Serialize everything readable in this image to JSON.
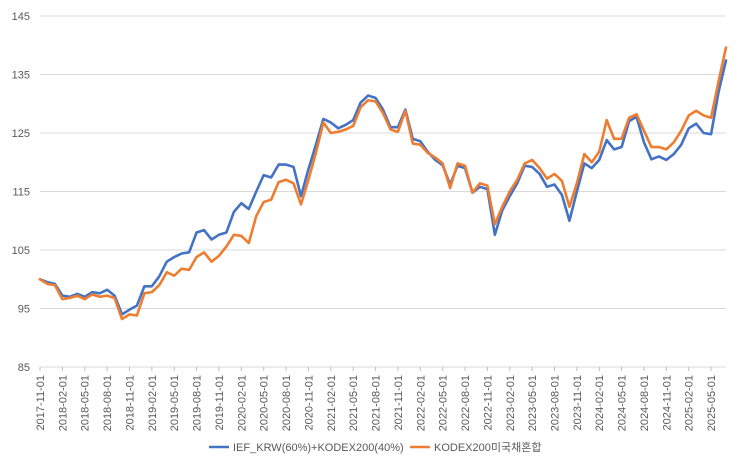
{
  "chart_data": {
    "type": "line",
    "title": "",
    "xlabel": "",
    "ylabel": "",
    "ylim": [
      85,
      145
    ],
    "yticks": [
      85,
      95,
      105,
      115,
      125,
      135,
      145
    ],
    "grid": true,
    "legend_position": "bottom",
    "x": [
      "2017-11-01",
      "2017-12-01",
      "2018-01-01",
      "2018-02-01",
      "2018-03-01",
      "2018-04-01",
      "2018-05-01",
      "2018-06-01",
      "2018-07-01",
      "2018-08-01",
      "2018-09-01",
      "2018-10-01",
      "2018-11-01",
      "2018-12-01",
      "2019-01-01",
      "2019-02-01",
      "2019-03-01",
      "2019-04-01",
      "2019-05-01",
      "2019-06-01",
      "2019-07-01",
      "2019-08-01",
      "2019-09-01",
      "2019-10-01",
      "2019-11-01",
      "2019-12-01",
      "2020-01-01",
      "2020-02-01",
      "2020-03-01",
      "2020-04-01",
      "2020-05-01",
      "2020-06-01",
      "2020-07-01",
      "2020-08-01",
      "2020-09-01",
      "2020-10-01",
      "2020-11-01",
      "2020-12-01",
      "2021-01-01",
      "2021-02-01",
      "2021-03-01",
      "2021-04-01",
      "2021-05-01",
      "2021-06-01",
      "2021-07-01",
      "2021-08-01",
      "2021-09-01",
      "2021-10-01",
      "2021-11-01",
      "2021-12-01",
      "2022-01-01",
      "2022-02-01",
      "2022-03-01",
      "2022-04-01",
      "2022-05-01",
      "2022-06-01",
      "2022-07-01",
      "2022-08-01",
      "2022-09-01",
      "2022-10-01",
      "2022-11-01",
      "2022-12-01",
      "2023-01-01",
      "2023-02-01",
      "2023-03-01",
      "2023-04-01",
      "2023-05-01",
      "2023-06-01",
      "2023-07-01",
      "2023-08-01",
      "2023-09-01",
      "2023-10-01",
      "2023-11-01",
      "2023-12-01",
      "2024-01-01",
      "2024-02-01",
      "2024-03-01",
      "2024-04-01",
      "2024-05-01",
      "2024-06-01",
      "2024-07-01",
      "2024-08-01",
      "2024-09-01",
      "2024-10-01",
      "2024-11-01",
      "2024-12-01",
      "2025-01-01",
      "2025-02-01",
      "2025-03-01",
      "2025-04-01",
      "2025-05-01",
      "2025-06-01",
      "2025-07-01"
    ],
    "tick_labels": [
      "2017-11-01",
      "2018-02-01",
      "2018-05-01",
      "2018-08-01",
      "2018-11-01",
      "2019-02-01",
      "2019-05-01",
      "2019-08-01",
      "2019-11-01",
      "2020-02-01",
      "2020-05-01",
      "2020-08-01",
      "2020-11-01",
      "2021-02-01",
      "2021-05-01",
      "2021-08-01",
      "2021-11-01",
      "2022-02-01",
      "2022-05-01",
      "2022-08-01",
      "2022-11-01",
      "2023-02-01",
      "2023-05-01",
      "2023-08-01",
      "2023-11-01",
      "2024-02-01",
      "2024-05-01",
      "2024-08-01",
      "2024-11-01",
      "2025-02-01",
      "2025-05-01"
    ],
    "tick_indices": [
      0,
      3,
      6,
      9,
      12,
      15,
      18,
      21,
      24,
      27,
      30,
      33,
      36,
      39,
      42,
      45,
      48,
      51,
      54,
      57,
      60,
      63,
      66,
      69,
      72,
      75,
      78,
      81,
      84,
      87,
      90
    ],
    "series": [
      {
        "name": "IEF_KRW(60%)+KODEX200(40%)",
        "color": "#4472c4",
        "values": [
          100.0,
          99.5,
          99.2,
          97.2,
          97.0,
          97.5,
          97.0,
          97.8,
          97.6,
          98.2,
          97.2,
          94.0,
          94.8,
          95.5,
          98.8,
          98.8,
          100.5,
          103.0,
          103.8,
          104.4,
          104.6,
          108.0,
          108.4,
          106.8,
          107.6,
          108.0,
          111.5,
          113.0,
          112.0,
          115.0,
          117.8,
          117.4,
          119.6,
          119.6,
          119.2,
          114.2,
          118.8,
          123.0,
          127.4,
          126.8,
          125.8,
          126.4,
          127.2,
          130.2,
          131.4,
          131.0,
          129.0,
          126.0,
          126.0,
          129.0,
          124.0,
          123.6,
          121.8,
          120.4,
          119.5,
          116.2,
          119.4,
          119.0,
          114.8,
          115.8,
          115.4,
          107.6,
          111.8,
          114.2,
          116.4,
          119.4,
          119.2,
          118.0,
          115.8,
          116.2,
          114.4,
          110.0,
          115.0,
          119.8,
          119.0,
          120.4,
          123.8,
          122.2,
          122.6,
          127.0,
          127.8,
          123.4,
          120.5,
          121.0,
          120.4,
          121.4,
          123.0,
          125.8,
          126.6,
          125.0,
          124.8,
          132.0,
          137.4
        ]
      },
      {
        "name": "KODEX200미국채혼합",
        "color": "#ed7d31",
        "values": [
          100.0,
          99.2,
          99.0,
          96.6,
          96.8,
          97.2,
          96.6,
          97.4,
          97.0,
          97.2,
          96.8,
          93.2,
          94.0,
          93.8,
          97.6,
          97.8,
          99.0,
          101.2,
          100.6,
          101.8,
          101.6,
          103.8,
          104.6,
          103.0,
          104.0,
          105.6,
          107.6,
          107.4,
          106.2,
          110.8,
          113.2,
          113.6,
          116.6,
          117.0,
          116.4,
          112.8,
          117.0,
          121.6,
          126.8,
          125.0,
          125.2,
          125.6,
          126.2,
          129.4,
          130.6,
          130.4,
          128.4,
          125.6,
          125.2,
          128.8,
          123.2,
          123.0,
          121.6,
          120.8,
          119.8,
          115.6,
          119.8,
          119.4,
          114.8,
          116.4,
          116.0,
          109.4,
          112.4,
          115.0,
          117.0,
          119.8,
          120.4,
          119.0,
          117.2,
          118.0,
          116.8,
          112.4,
          116.4,
          121.4,
          120.0,
          121.8,
          127.2,
          124.0,
          124.0,
          127.6,
          128.2,
          125.4,
          122.6,
          122.6,
          122.2,
          123.4,
          125.4,
          128.0,
          128.8,
          128.0,
          127.6,
          133.8,
          139.6
        ]
      }
    ]
  }
}
